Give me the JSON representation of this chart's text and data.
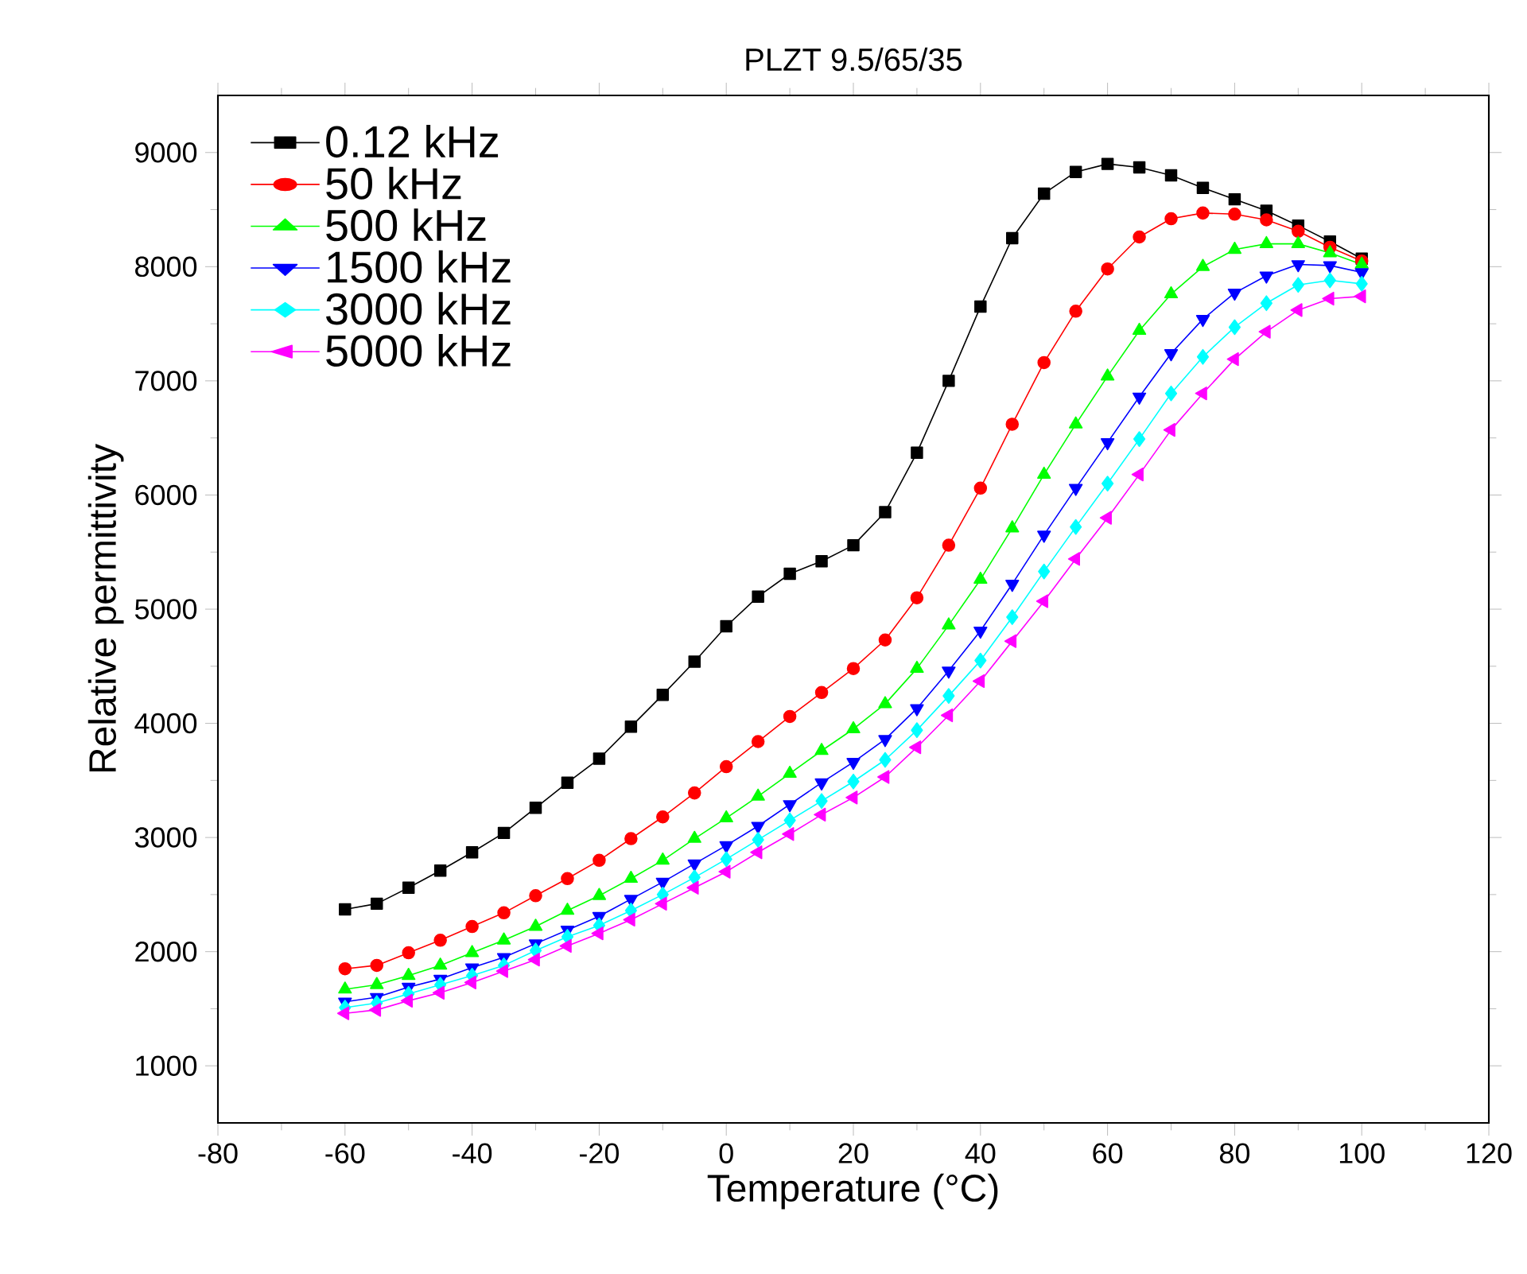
{
  "chart_data": {
    "type": "line",
    "title": "PLZT 9.5/65/35",
    "xlabel": "Temperature (°C)",
    "ylabel": "Relative permittivity",
    "x": [
      -60,
      -55,
      -50,
      -45,
      -40,
      -35,
      -30,
      -25,
      -20,
      -15,
      -10,
      -5,
      0,
      5,
      10,
      15,
      20,
      25,
      30,
      35,
      40,
      45,
      50,
      55,
      60,
      65,
      70,
      75,
      80,
      85,
      90,
      95,
      100
    ],
    "xlim": [
      -80,
      120
    ],
    "xticks": [
      -80,
      -60,
      -40,
      -20,
      0,
      20,
      40,
      60,
      80,
      100,
      120
    ],
    "ylim": [
      500,
      9500
    ],
    "yticks": [
      1000,
      2000,
      3000,
      4000,
      5000,
      6000,
      7000,
      8000,
      9000
    ],
    "legend": "top left",
    "line_style": "solid",
    "series": [
      {
        "name": "0.12 kHz",
        "color": "#000000",
        "marker": "square",
        "values": [
          2370,
          2420,
          2560,
          2710,
          2870,
          3040,
          3260,
          3480,
          3690,
          3970,
          4250,
          4540,
          4850,
          5110,
          5310,
          5420,
          5560,
          5850,
          6370,
          7000,
          7650,
          8250,
          8640,
          8830,
          8900,
          8870,
          8800,
          8690,
          8590,
          8490,
          8360,
          8220,
          8070
        ]
      },
      {
        "name": "50 kHz",
        "color": "#ff0000",
        "marker": "circle",
        "values": [
          1850,
          1880,
          1990,
          2100,
          2220,
          2340,
          2490,
          2640,
          2800,
          2990,
          3180,
          3390,
          3620,
          3840,
          4060,
          4270,
          4480,
          4730,
          5100,
          5560,
          6060,
          6620,
          7160,
          7610,
          7980,
          8260,
          8420,
          8470,
          8460,
          8410,
          8310,
          8170,
          8050
        ]
      },
      {
        "name": "500 kHz",
        "color": "#00ff00",
        "marker": "triangle",
        "values": [
          1670,
          1710,
          1790,
          1880,
          1990,
          2100,
          2220,
          2360,
          2490,
          2640,
          2800,
          2990,
          3170,
          3360,
          3560,
          3760,
          3950,
          4170,
          4480,
          4860,
          5260,
          5710,
          6180,
          6620,
          7040,
          7440,
          7760,
          8000,
          8150,
          8200,
          8200,
          8120,
          8020
        ]
      },
      {
        "name": "1500 kHz",
        "color": "#0000ff",
        "marker": "triangle-down",
        "values": [
          1560,
          1600,
          1690,
          1760,
          1860,
          1950,
          2070,
          2190,
          2310,
          2460,
          2610,
          2770,
          2930,
          3100,
          3290,
          3480,
          3660,
          3860,
          4130,
          4460,
          4810,
          5220,
          5650,
          6060,
          6460,
          6860,
          7240,
          7540,
          7770,
          7920,
          8020,
          8010,
          7950
        ]
      },
      {
        "name": "3000 kHz",
        "color": "#00ffff",
        "marker": "diamond",
        "values": [
          1510,
          1550,
          1630,
          1710,
          1790,
          1880,
          2010,
          2130,
          2230,
          2360,
          2500,
          2650,
          2810,
          2980,
          3150,
          3320,
          3490,
          3680,
          3940,
          4240,
          4550,
          4930,
          5330,
          5720,
          6100,
          6490,
          6890,
          7210,
          7470,
          7680,
          7840,
          7880,
          7850
        ]
      },
      {
        "name": "5000 kHz",
        "color": "#ff00ff",
        "marker": "triangle-left",
        "values": [
          1460,
          1490,
          1570,
          1640,
          1730,
          1830,
          1930,
          2050,
          2160,
          2280,
          2420,
          2560,
          2700,
          2870,
          3030,
          3200,
          3350,
          3530,
          3790,
          4070,
          4370,
          4720,
          5070,
          5440,
          5800,
          6180,
          6570,
          6890,
          7190,
          7430,
          7620,
          7720,
          7740
        ]
      }
    ]
  }
}
